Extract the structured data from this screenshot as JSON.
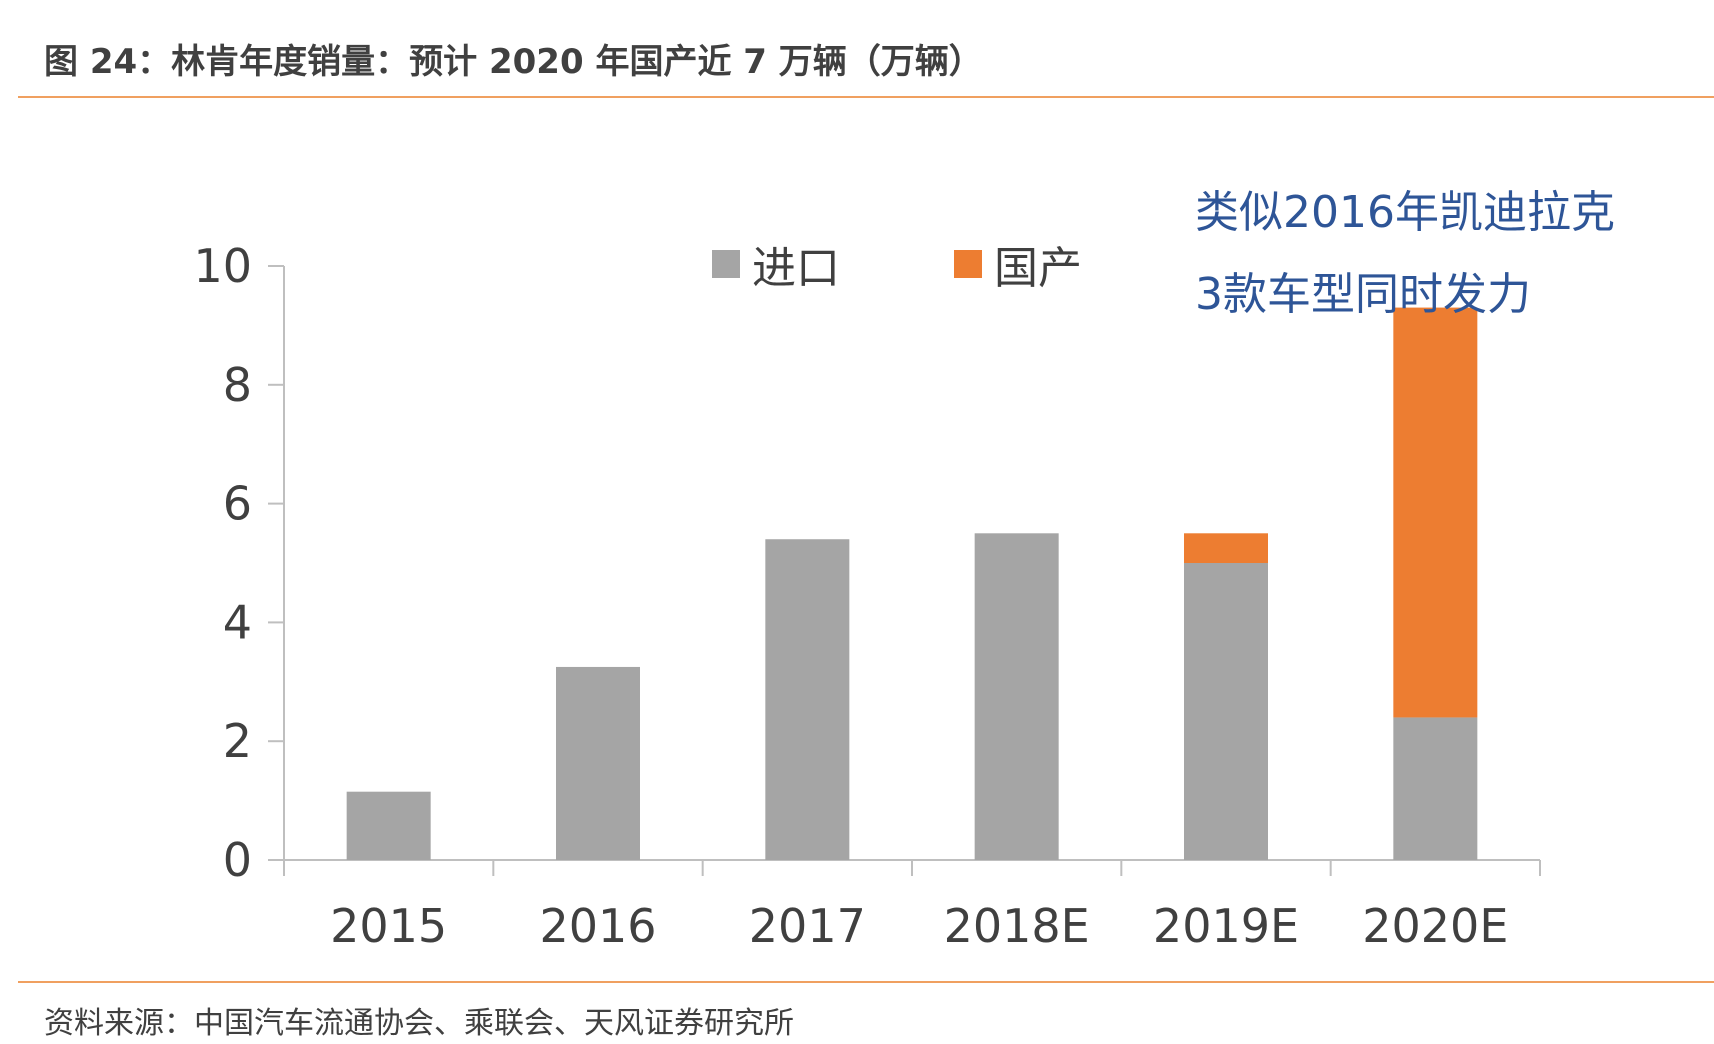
{
  "figure": {
    "title": "图 24：林肯年度销量：预计 2020 年国产近 7 万辆（万辆）",
    "source": "资料来源：中国汽车流通协会、乘联会、天风证券研究所"
  },
  "annotation": {
    "line1": "类似2016年凯迪拉克",
    "line2": "3款车型同时发力"
  },
  "colors": {
    "import": "#a5a5a5",
    "domestic": "#ed7d31",
    "axis": "#bfbfbf",
    "text": "#404040",
    "annotation": "#2e5597",
    "rule": "#f0a060"
  },
  "chart_data": {
    "type": "bar",
    "stacked": true,
    "title": "",
    "xlabel": "",
    "ylabel": "",
    "categories": [
      "2015",
      "2016",
      "2017",
      "2018E",
      "2019E",
      "2020E"
    ],
    "series": [
      {
        "name": "进口",
        "values": [
          1.15,
          3.25,
          5.4,
          5.5,
          5.0,
          2.4
        ]
      },
      {
        "name": "国产",
        "values": [
          0,
          0,
          0,
          0,
          0.5,
          6.9
        ]
      }
    ],
    "ylim": [
      0,
      10
    ],
    "yticks": [
      0,
      2,
      4,
      6,
      8,
      10
    ],
    "grid": false,
    "legend": "top"
  }
}
